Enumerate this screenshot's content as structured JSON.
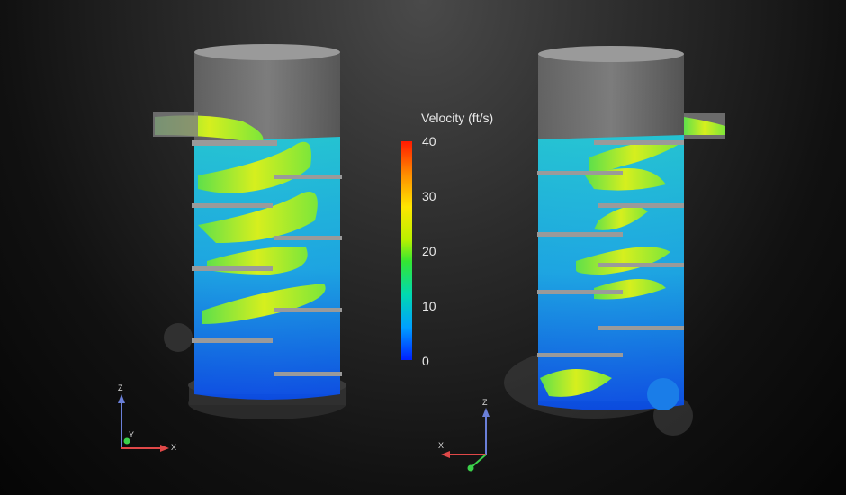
{
  "colorbar": {
    "title": "Velocity (ft/s)",
    "ticks": [
      "40",
      "30",
      "20",
      "10",
      "0"
    ],
    "range": [
      0,
      40
    ],
    "colors": [
      "#ff1a00",
      "#ffe600",
      "#33e633",
      "#00d9b0",
      "#0020ff"
    ]
  },
  "left_triad": {
    "z": "Z",
    "y": "Y",
    "x": "X"
  },
  "right_triad": {
    "z": "Z",
    "x": "X"
  }
}
